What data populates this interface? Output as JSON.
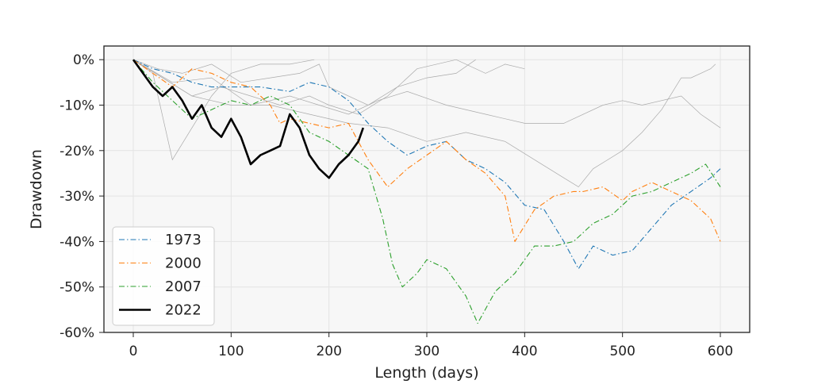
{
  "chart_data": {
    "type": "line",
    "title": "",
    "xlabel": "Length (days)",
    "ylabel": "Drawdown",
    "xlim": [
      -30,
      630
    ],
    "ylim": [
      -60,
      3
    ],
    "x_ticks": [
      0,
      100,
      200,
      300,
      400,
      500,
      600
    ],
    "y_ticks": [
      0,
      -10,
      -20,
      -30,
      -40,
      -50,
      -60
    ],
    "y_tick_format": "percent",
    "grid": true,
    "legend_position": "lower-left",
    "background_color": "#f7f7f7",
    "legend_series": [
      "1973",
      "2000",
      "2007",
      "2022"
    ],
    "series": [
      {
        "name": "1973",
        "color": "#1f77b4",
        "style": "dashdot",
        "width": 1.1,
        "points": [
          [
            0,
            0
          ],
          [
            20,
            -2
          ],
          [
            40,
            -3
          ],
          [
            60,
            -5
          ],
          [
            80,
            -6
          ],
          [
            100,
            -6
          ],
          [
            130,
            -6
          ],
          [
            160,
            -7
          ],
          [
            180,
            -5
          ],
          [
            200,
            -6
          ],
          [
            220,
            -9
          ],
          [
            240,
            -14
          ],
          [
            260,
            -18
          ],
          [
            280,
            -21
          ],
          [
            300,
            -19
          ],
          [
            320,
            -18
          ],
          [
            340,
            -22
          ],
          [
            360,
            -24
          ],
          [
            380,
            -27
          ],
          [
            400,
            -32
          ],
          [
            420,
            -33
          ],
          [
            440,
            -40
          ],
          [
            455,
            -46
          ],
          [
            470,
            -41
          ],
          [
            490,
            -43
          ],
          [
            510,
            -42
          ],
          [
            530,
            -37
          ],
          [
            550,
            -32
          ],
          [
            570,
            -29
          ],
          [
            590,
            -26
          ],
          [
            600,
            -24
          ]
        ]
      },
      {
        "name": "2000",
        "color": "#ff7f0e",
        "style": "dashdot",
        "width": 1.1,
        "points": [
          [
            0,
            0
          ],
          [
            20,
            -3
          ],
          [
            40,
            -6
          ],
          [
            60,
            -2
          ],
          [
            80,
            -3
          ],
          [
            100,
            -5
          ],
          [
            120,
            -6
          ],
          [
            140,
            -10
          ],
          [
            150,
            -14
          ],
          [
            160,
            -13
          ],
          [
            180,
            -14
          ],
          [
            200,
            -15
          ],
          [
            220,
            -14
          ],
          [
            240,
            -22
          ],
          [
            260,
            -28
          ],
          [
            280,
            -24
          ],
          [
            300,
            -21
          ],
          [
            320,
            -18
          ],
          [
            340,
            -22
          ],
          [
            360,
            -25
          ],
          [
            380,
            -30
          ],
          [
            390,
            -40
          ],
          [
            410,
            -33
          ],
          [
            430,
            -30
          ],
          [
            450,
            -29
          ],
          [
            460,
            -29
          ],
          [
            480,
            -28
          ],
          [
            500,
            -31
          ],
          [
            510,
            -29
          ],
          [
            530,
            -27
          ],
          [
            550,
            -29
          ],
          [
            570,
            -31
          ],
          [
            590,
            -35
          ],
          [
            600,
            -40
          ]
        ]
      },
      {
        "name": "2007",
        "color": "#2ca02c",
        "style": "dashdot",
        "width": 1.1,
        "points": [
          [
            0,
            0
          ],
          [
            20,
            -5
          ],
          [
            40,
            -9
          ],
          [
            60,
            -13
          ],
          [
            80,
            -11
          ],
          [
            100,
            -9
          ],
          [
            120,
            -10
          ],
          [
            140,
            -8
          ],
          [
            160,
            -10
          ],
          [
            180,
            -16
          ],
          [
            200,
            -18
          ],
          [
            220,
            -21
          ],
          [
            240,
            -24
          ],
          [
            255,
            -35
          ],
          [
            265,
            -45
          ],
          [
            275,
            -50
          ],
          [
            290,
            -47
          ],
          [
            300,
            -44
          ],
          [
            320,
            -46
          ],
          [
            340,
            -52
          ],
          [
            352,
            -58
          ],
          [
            370,
            -51
          ],
          [
            390,
            -47
          ],
          [
            410,
            -41
          ],
          [
            430,
            -41
          ],
          [
            450,
            -40
          ],
          [
            470,
            -36
          ],
          [
            490,
            -34
          ],
          [
            510,
            -30
          ],
          [
            530,
            -29
          ],
          [
            550,
            -27
          ],
          [
            570,
            -25
          ],
          [
            585,
            -23
          ],
          [
            600,
            -28
          ]
        ]
      },
      {
        "name": "2022",
        "color": "#000000",
        "style": "solid",
        "width": 2.6,
        "points": [
          [
            0,
            0
          ],
          [
            10,
            -3
          ],
          [
            20,
            -6
          ],
          [
            30,
            -8
          ],
          [
            40,
            -6
          ],
          [
            50,
            -9
          ],
          [
            60,
            -13
          ],
          [
            70,
            -10
          ],
          [
            80,
            -15
          ],
          [
            90,
            -17
          ],
          [
            100,
            -13
          ],
          [
            110,
            -17
          ],
          [
            120,
            -23
          ],
          [
            130,
            -21
          ],
          [
            140,
            -20
          ],
          [
            150,
            -19
          ],
          [
            160,
            -12
          ],
          [
            170,
            -15
          ],
          [
            180,
            -21
          ],
          [
            190,
            -24
          ],
          [
            200,
            -26
          ],
          [
            210,
            -23
          ],
          [
            220,
            -21
          ],
          [
            230,
            -18
          ],
          [
            235,
            -15
          ]
        ]
      }
    ],
    "background_series": [
      {
        "color": "#aaaaaa",
        "points": [
          [
            0,
            0
          ],
          [
            20,
            -3
          ],
          [
            40,
            -22
          ],
          [
            60,
            -15
          ],
          [
            80,
            -8
          ],
          [
            100,
            -3
          ],
          [
            130,
            -1
          ],
          [
            160,
            -1
          ],
          [
            185,
            0
          ]
        ]
      },
      {
        "color": "#aaaaaa",
        "points": [
          [
            0,
            0
          ],
          [
            30,
            -4
          ],
          [
            60,
            -8
          ],
          [
            90,
            -6
          ],
          [
            120,
            -8
          ],
          [
            150,
            -10
          ],
          [
            180,
            -8
          ],
          [
            200,
            -10
          ],
          [
            230,
            -12
          ],
          [
            260,
            -8
          ],
          [
            290,
            -2
          ],
          [
            330,
            0
          ],
          [
            360,
            -3
          ],
          [
            380,
            -1
          ],
          [
            400,
            -2
          ]
        ]
      },
      {
        "color": "#aaaaaa",
        "points": [
          [
            0,
            0
          ],
          [
            25,
            -2
          ],
          [
            50,
            -3
          ],
          [
            80,
            -1
          ],
          [
            110,
            -5
          ],
          [
            140,
            -4
          ],
          [
            170,
            -3
          ],
          [
            190,
            -1
          ],
          [
            200,
            -6
          ],
          [
            240,
            -10
          ],
          [
            270,
            -6
          ],
          [
            300,
            -4
          ],
          [
            330,
            -3
          ],
          [
            350,
            0
          ]
        ]
      },
      {
        "color": "#aaaaaa",
        "points": [
          [
            0,
            0
          ],
          [
            40,
            -5
          ],
          [
            80,
            -4
          ],
          [
            120,
            -10
          ],
          [
            160,
            -8
          ],
          [
            190,
            -10
          ],
          [
            220,
            -12
          ],
          [
            250,
            -9
          ],
          [
            280,
            -7
          ],
          [
            320,
            -10
          ],
          [
            360,
            -12
          ],
          [
            400,
            -14
          ],
          [
            440,
            -14
          ],
          [
            480,
            -10
          ],
          [
            500,
            -9
          ],
          [
            520,
            -10
          ],
          [
            560,
            -8
          ],
          [
            580,
            -12
          ],
          [
            600,
            -15
          ]
        ]
      },
      {
        "color": "#aaaaaa",
        "points": [
          [
            0,
            0
          ],
          [
            30,
            -4
          ],
          [
            60,
            -8
          ],
          [
            100,
            -10
          ],
          [
            140,
            -10
          ],
          [
            180,
            -12
          ],
          [
            220,
            -14
          ],
          [
            260,
            -15
          ],
          [
            300,
            -18
          ],
          [
            340,
            -16
          ],
          [
            380,
            -18
          ],
          [
            410,
            -22
          ],
          [
            440,
            -26
          ],
          [
            455,
            -28
          ],
          [
            470,
            -24
          ],
          [
            500,
            -20
          ],
          [
            520,
            -16
          ],
          [
            540,
            -11
          ],
          [
            560,
            -4
          ],
          [
            570,
            -4
          ],
          [
            590,
            -2
          ],
          [
            595,
            -1
          ]
        ]
      }
    ]
  }
}
